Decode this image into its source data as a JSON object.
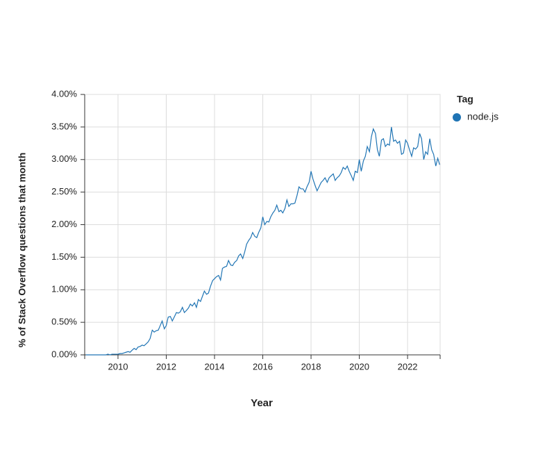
{
  "chart_data": {
    "type": "line",
    "x_label": "Year",
    "y_label": "% of Stack Overflow questions that month",
    "legend_title": "Tag",
    "x": [
      2008.67,
      2008.75,
      2008.83,
      2008.92,
      2009.0,
      2009.08,
      2009.17,
      2009.25,
      2009.33,
      2009.42,
      2009.5,
      2009.58,
      2009.67,
      2009.75,
      2009.83,
      2009.92,
      2010.0,
      2010.08,
      2010.17,
      2010.25,
      2010.33,
      2010.42,
      2010.5,
      2010.58,
      2010.67,
      2010.75,
      2010.83,
      2010.92,
      2011.0,
      2011.08,
      2011.17,
      2011.25,
      2011.33,
      2011.42,
      2011.5,
      2011.58,
      2011.67,
      2011.75,
      2011.83,
      2011.92,
      2012.0,
      2012.08,
      2012.17,
      2012.25,
      2012.33,
      2012.42,
      2012.5,
      2012.58,
      2012.67,
      2012.75,
      2012.83,
      2012.92,
      2013.0,
      2013.08,
      2013.17,
      2013.25,
      2013.33,
      2013.42,
      2013.5,
      2013.58,
      2013.67,
      2013.75,
      2013.83,
      2013.92,
      2014.0,
      2014.08,
      2014.17,
      2014.25,
      2014.33,
      2014.42,
      2014.5,
      2014.58,
      2014.67,
      2014.75,
      2014.83,
      2014.92,
      2015.0,
      2015.08,
      2015.17,
      2015.25,
      2015.33,
      2015.42,
      2015.5,
      2015.58,
      2015.67,
      2015.75,
      2015.83,
      2015.92,
      2016.0,
      2016.08,
      2016.17,
      2016.25,
      2016.33,
      2016.42,
      2016.5,
      2016.58,
      2016.67,
      2016.75,
      2016.83,
      2016.92,
      2017.0,
      2017.08,
      2017.17,
      2017.25,
      2017.33,
      2017.42,
      2017.5,
      2017.58,
      2017.67,
      2017.75,
      2017.83,
      2017.92,
      2018.0,
      2018.08,
      2018.17,
      2018.25,
      2018.33,
      2018.42,
      2018.5,
      2018.58,
      2018.67,
      2018.75,
      2018.83,
      2018.92,
      2019.0,
      2019.08,
      2019.17,
      2019.25,
      2019.33,
      2019.42,
      2019.5,
      2019.58,
      2019.67,
      2019.75,
      2019.83,
      2019.92,
      2020.0,
      2020.08,
      2020.17,
      2020.25,
      2020.33,
      2020.42,
      2020.5,
      2020.58,
      2020.67,
      2020.75,
      2020.83,
      2020.92,
      2021.0,
      2021.08,
      2021.17,
      2021.25,
      2021.33,
      2021.42,
      2021.5,
      2021.58,
      2021.67,
      2021.75,
      2021.83,
      2021.92,
      2022.0,
      2022.08,
      2022.17,
      2022.25,
      2022.33,
      2022.42,
      2022.5,
      2022.58,
      2022.67,
      2022.75,
      2022.83,
      2022.92,
      2023.0,
      2023.08,
      2023.17,
      2023.25,
      2023.33
    ],
    "series": [
      {
        "name": "node.js",
        "color": "#1f74b4",
        "values": [
          0,
          0,
          0,
          0,
          0,
          0,
          0,
          0,
          0,
          0,
          0,
          0.01,
          0,
          0.01,
          0.01,
          0.01,
          0.01,
          0.02,
          0.02,
          0.03,
          0.04,
          0.05,
          0.04,
          0.07,
          0.1,
          0.08,
          0.12,
          0.13,
          0.15,
          0.14,
          0.17,
          0.2,
          0.25,
          0.38,
          0.35,
          0.37,
          0.38,
          0.45,
          0.52,
          0.4,
          0.45,
          0.58,
          0.59,
          0.52,
          0.58,
          0.65,
          0.64,
          0.66,
          0.73,
          0.65,
          0.68,
          0.72,
          0.78,
          0.75,
          0.8,
          0.73,
          0.85,
          0.82,
          0.9,
          0.98,
          0.93,
          0.95,
          1.05,
          1.14,
          1.17,
          1.2,
          1.22,
          1.15,
          1.33,
          1.35,
          1.36,
          1.45,
          1.38,
          1.37,
          1.42,
          1.45,
          1.52,
          1.55,
          1.48,
          1.58,
          1.7,
          1.76,
          1.8,
          1.88,
          1.82,
          1.8,
          1.88,
          1.95,
          2.12,
          2.0,
          2.05,
          2.04,
          2.12,
          2.18,
          2.22,
          2.3,
          2.2,
          2.22,
          2.18,
          2.25,
          2.38,
          2.28,
          2.32,
          2.32,
          2.33,
          2.45,
          2.58,
          2.55,
          2.55,
          2.5,
          2.58,
          2.65,
          2.82,
          2.7,
          2.6,
          2.52,
          2.58,
          2.65,
          2.68,
          2.72,
          2.65,
          2.72,
          2.75,
          2.78,
          2.68,
          2.72,
          2.75,
          2.8,
          2.88,
          2.85,
          2.9,
          2.82,
          2.75,
          2.68,
          2.82,
          2.8,
          3.0,
          2.82,
          2.98,
          3.05,
          3.2,
          3.12,
          3.35,
          3.47,
          3.4,
          3.15,
          3.05,
          3.3,
          3.32,
          3.2,
          3.24,
          3.22,
          3.5,
          3.28,
          3.3,
          3.25,
          3.28,
          3.08,
          3.1,
          3.3,
          3.25,
          3.15,
          3.05,
          3.18,
          3.16,
          3.2,
          3.4,
          3.32,
          3.0,
          3.12,
          3.08,
          3.32,
          3.15,
          3.08,
          2.9,
          3.02,
          2.92
        ]
      }
    ],
    "xlim": [
      2008.62,
      2023.35
    ],
    "xticks": [
      2010,
      2012,
      2014,
      2016,
      2018,
      2020,
      2022
    ],
    "ylim": [
      0,
      4
    ],
    "yticks": [
      {
        "value": 0,
        "label": "0.00%"
      },
      {
        "value": 0.5,
        "label": "0.50%"
      },
      {
        "value": 1,
        "label": "1.00%"
      },
      {
        "value": 1.5,
        "label": "1.50%"
      },
      {
        "value": 2,
        "label": "2.00%"
      },
      {
        "value": 2.5,
        "label": "2.50%"
      },
      {
        "value": 3,
        "label": "3.00%"
      },
      {
        "value": 3.5,
        "label": "3.50%"
      },
      {
        "value": 4,
        "label": "4.00%"
      }
    ],
    "grid": true
  }
}
